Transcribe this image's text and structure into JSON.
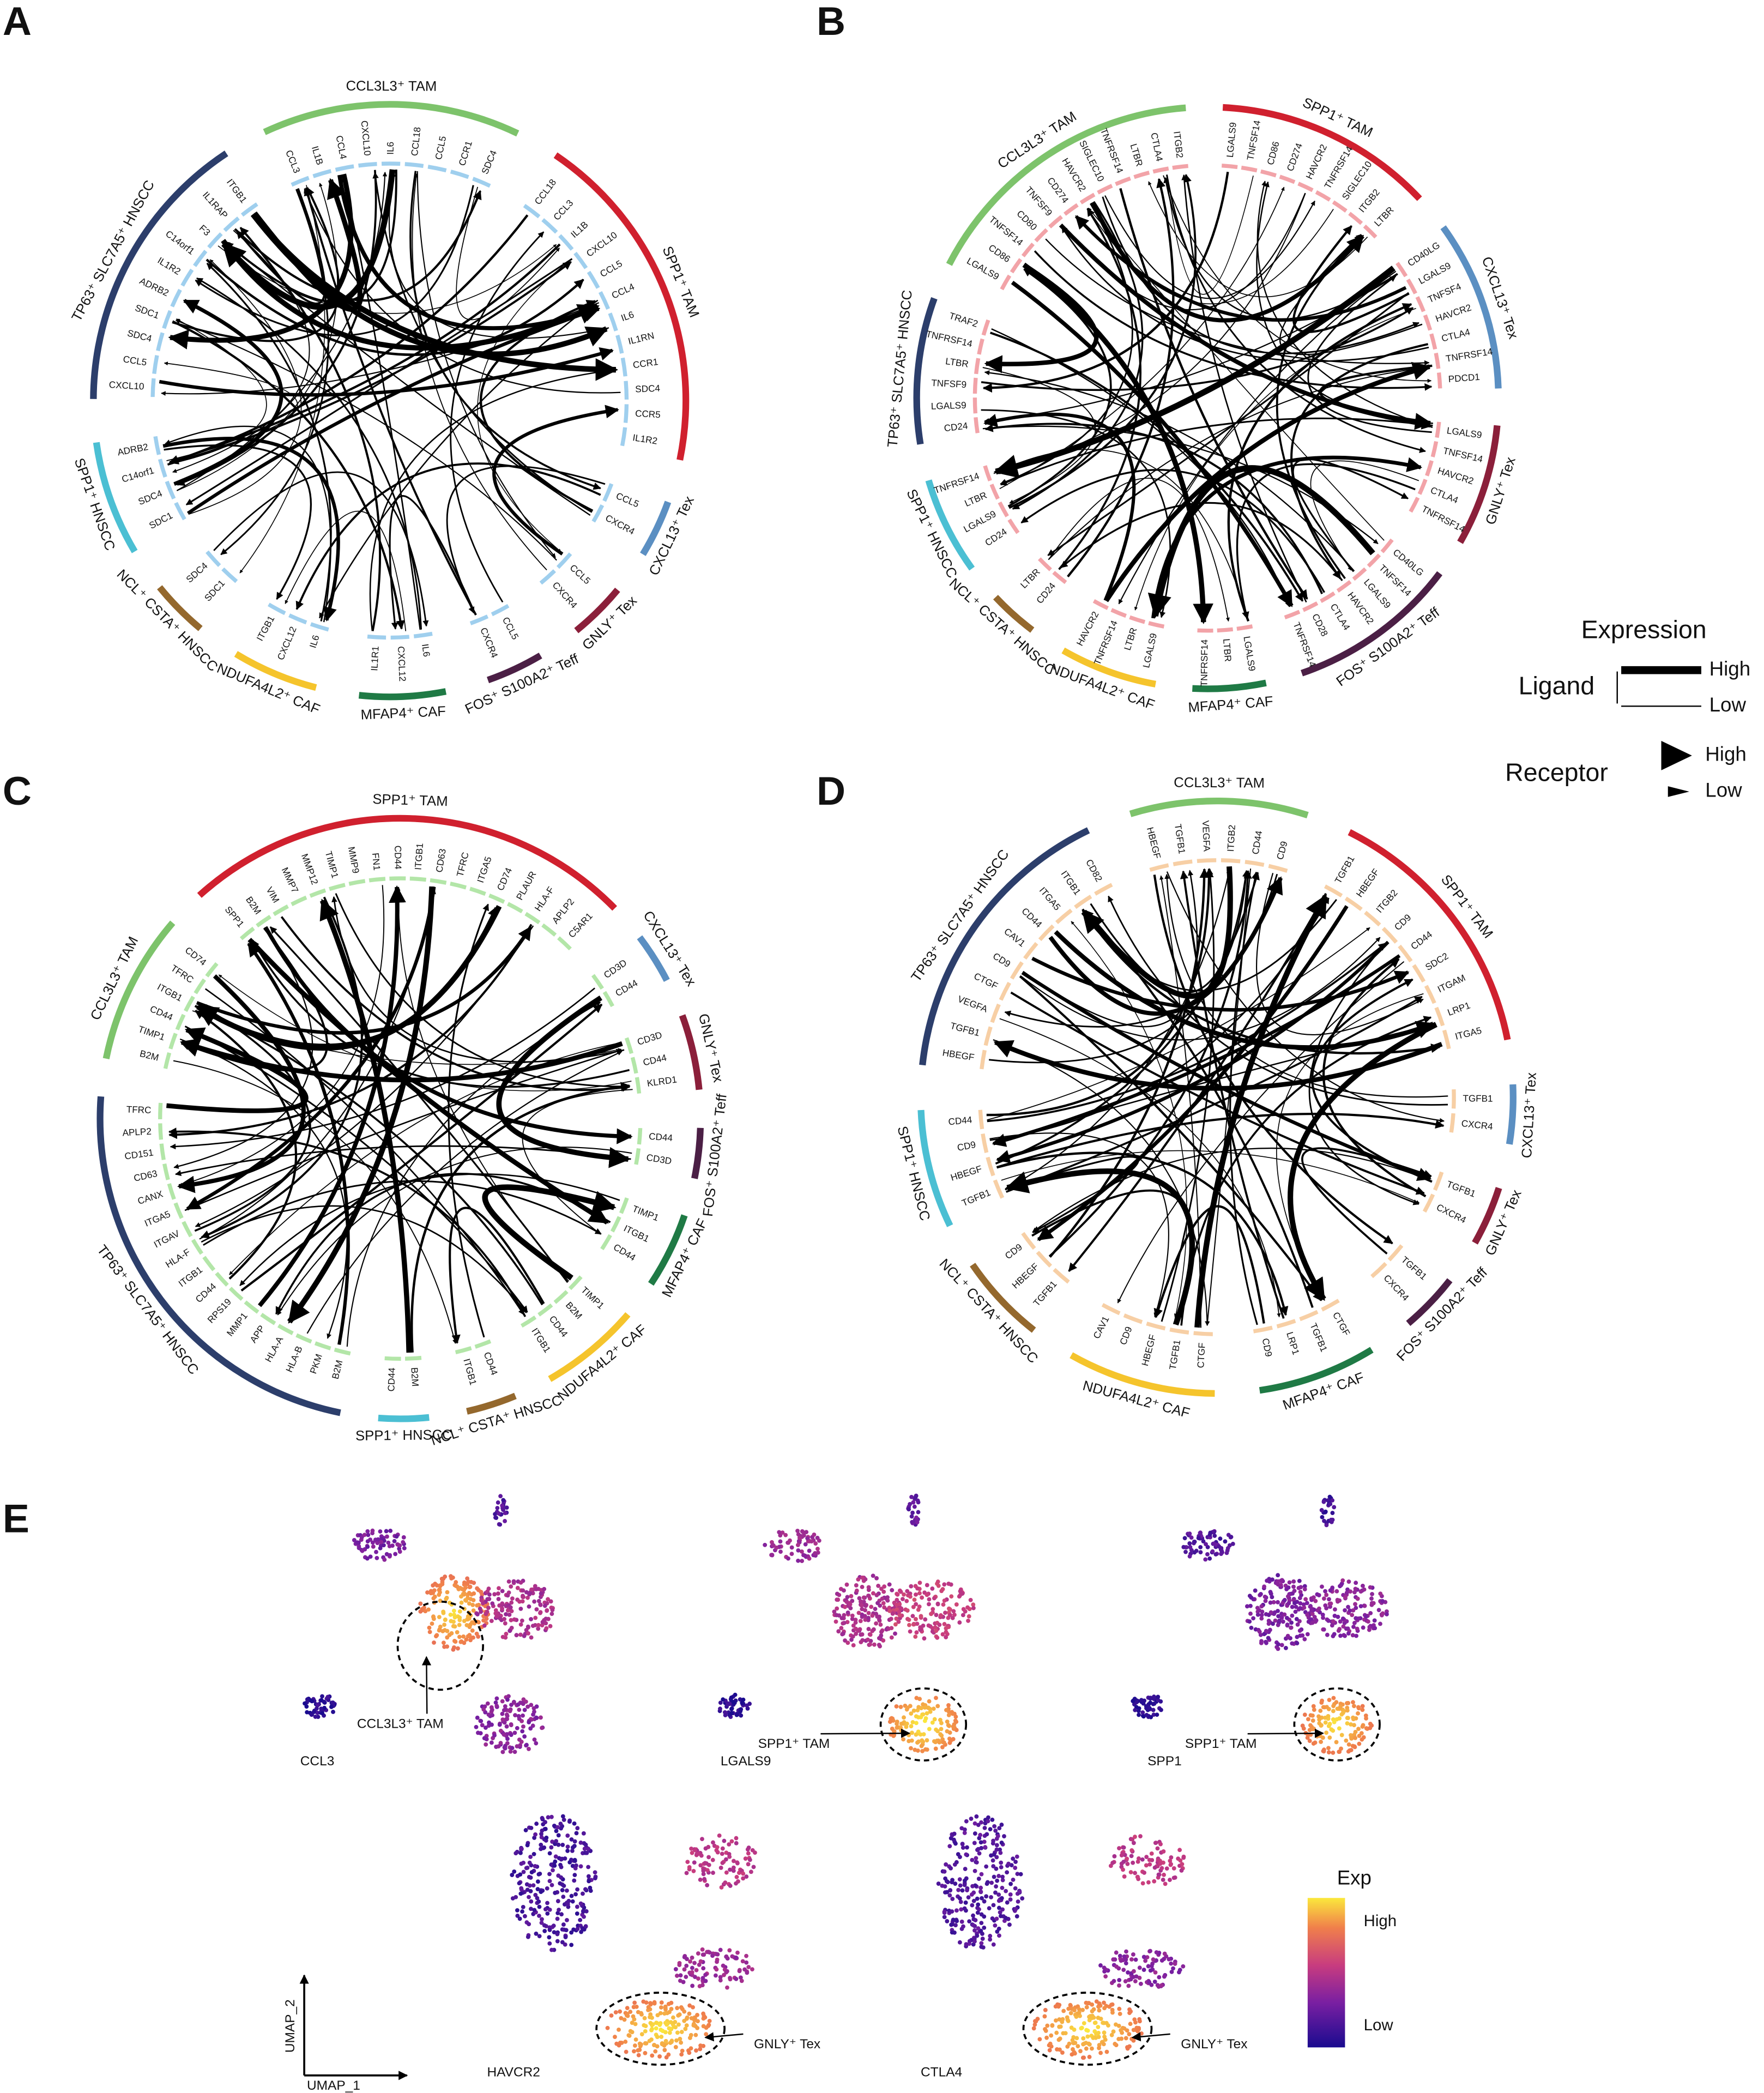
{
  "panels": [
    {
      "letter": "A",
      "ligand_color": "#9fcfee",
      "sectors": [
        {
          "label": "CCL3L3⁺ TAM",
          "color": "#7dc36b",
          "genes": [
            "CCL3",
            "IL1B",
            "CCL4",
            "CXCL10",
            "IL6",
            "CCL18",
            "CCL5",
            "CCR1",
            "SDC4"
          ]
        },
        {
          "label": "SPP1⁺ TAM",
          "color": "#d0202e",
          "genes": [
            "CCL18",
            "CCL3",
            "IL1B",
            "CXCL10",
            "CCL5",
            "CCL4",
            "IL6",
            "IL1RN",
            "CCR1",
            "SDC4",
            "CCR5",
            "IL1R2"
          ]
        },
        {
          "label": "CXCL13⁺ Tex",
          "color": "#5b8fc2",
          "genes": [
            "CCL5",
            "CXCR4"
          ]
        },
        {
          "label": "GNLY⁺ Tex",
          "color": "#8b1f3a",
          "genes": [
            "CCL5",
            "CXCR4"
          ]
        },
        {
          "label": "FOS⁺ S100A2⁺ Teff",
          "color": "#4b1f45",
          "genes": [
            "CCL5",
            "CXCR4"
          ]
        },
        {
          "label": "MFAP4⁺ CAF",
          "color": "#1f7a45",
          "genes": [
            "IL6",
            "CXCL12",
            "IL1R1"
          ]
        },
        {
          "label": "NDUFA4L2⁺ CAF",
          "color": "#f5c42c",
          "genes": [
            "IL6",
            "CXCL12",
            "ITGB1"
          ]
        },
        {
          "label": "NCL⁺ CSTA⁺ HNSCC",
          "color": "#94682d",
          "genes": [
            "SDC1",
            "SDC4"
          ]
        },
        {
          "label": "SPP1⁺ HNSCC",
          "color": "#4bbfd3",
          "genes": [
            "SDC1",
            "SDC4",
            "C14orf1",
            "ADRB2"
          ]
        },
        {
          "label": "TP63⁺ SLC7A5⁺ HNSCC",
          "color": "#2c3e6b",
          "genes": [
            "CXCL10",
            "CCL5",
            "SDC4",
            "SDC1",
            "ADRB2",
            "IL1R2",
            "C14orf1",
            "F3",
            "IL1RAP",
            "ITGB1"
          ]
        }
      ]
    },
    {
      "letter": "B",
      "ligand_color": "#f2a3a8",
      "sectors": [
        {
          "label": "SPP1⁺ TAM",
          "color": "#d0202e",
          "genes": [
            "LGALS9",
            "TNFSF14",
            "CD86",
            "CD274",
            "HAVCR2",
            "TNFRSF14",
            "SIGLEC10",
            "ITGB2",
            "LTBR"
          ]
        },
        {
          "label": "CXCL13⁺ Tex",
          "color": "#5b8fc2",
          "genes": [
            "CD40LG",
            "LGALS9",
            "TNFSF4",
            "HAVCR2",
            "CTLA4",
            "TNFRSF14",
            "PDCD1"
          ]
        },
        {
          "label": "GNLY⁺ Tex",
          "color": "#8b1f3a",
          "genes": [
            "LGALS9",
            "TNFSF14",
            "HAVCR2",
            "CTLA4",
            "TNFRSF14"
          ]
        },
        {
          "label": "FOS⁺ S100A2⁺ Teff",
          "color": "#4b1f45",
          "genes": [
            "CD40LG",
            "TNFSF14",
            "LGALS9",
            "HAVCR2",
            "CTLA4",
            "CD28",
            "TNFRSF14"
          ]
        },
        {
          "label": "MFAP4⁺ CAF",
          "color": "#1f7a45",
          "genes": [
            "LGALS9",
            "LTBR",
            "TNFRSF14"
          ]
        },
        {
          "label": "NDUFA4L2⁺ CAF",
          "color": "#f5c42c",
          "genes": [
            "LGALS9",
            "LTBR",
            "TNFRSF14",
            "HAVCR2"
          ]
        },
        {
          "label": "NCL⁺ CSTA⁺ HNSCC",
          "color": "#94682d",
          "genes": [
            "CD24",
            "LTBR"
          ]
        },
        {
          "label": "SPP1⁺ HNSCC",
          "color": "#4bbfd3",
          "genes": [
            "CD24",
            "LGALS9",
            "LTBR",
            "TNFRSF14"
          ]
        },
        {
          "label": "TP63⁺ SLC7A5⁺ HNSCC",
          "color": "#2c3e6b",
          "genes": [
            "CD24",
            "LGALS9",
            "TNFSF9",
            "LTBR",
            "TNFRSF14",
            "TRAF2"
          ]
        },
        {
          "label": "CCL3L3⁺ TAM",
          "color": "#7dc36b",
          "genes": [
            "LGALS9",
            "CD86",
            "TNFSF14",
            "CD80",
            "TNFSF9",
            "CD274",
            "HAVCR2",
            "SIGLEC10",
            "TNFRSF14",
            "LTBR",
            "CTLA4",
            "ITGB2"
          ]
        }
      ]
    },
    {
      "letter": "C",
      "ligand_color": "#b3e6a8",
      "sectors": [
        {
          "label": "SPP1⁺ TAM",
          "color": "#d0202e",
          "genes": [
            "SPP1",
            "B2M",
            "VIM",
            "MMP7",
            "MMP12",
            "TIMP1",
            "MMP9",
            "FN1",
            "CD44",
            "ITGB1",
            "CD63",
            "TFRC",
            "ITGA5",
            "CD74",
            "PLAUR",
            "HLA-F",
            "APLP2",
            "C5AR1"
          ]
        },
        {
          "label": "CXCL13⁺ Tex",
          "color": "#5b8fc2",
          "genes": [
            "CD3D",
            "CD44"
          ]
        },
        {
          "label": "GNLY⁺ Tex",
          "color": "#8b1f3a",
          "genes": [
            "CD3D",
            "CD44",
            "KLRD1"
          ]
        },
        {
          "label": "FOS⁺ S100A2⁺ Teff",
          "color": "#4b1f45",
          "genes": [
            "CD44",
            "CD3D"
          ]
        },
        {
          "label": "MFAP4⁺ CAF",
          "color": "#1f7a45",
          "genes": [
            "TIMP1",
            "ITGB1",
            "CD44"
          ]
        },
        {
          "label": "NDUFA4L2⁺ CAF",
          "color": "#f5c42c",
          "genes": [
            "TIMP1",
            "B2M",
            "CD44",
            "ITGB1"
          ]
        },
        {
          "label": "NCL⁺ CSTA⁺ HNSCC",
          "color": "#94682d",
          "genes": [
            "CD44",
            "ITGB1"
          ]
        },
        {
          "label": "SPP1⁺ HNSCC",
          "color": "#4bbfd3",
          "genes": [
            "B2M",
            "CD44"
          ]
        },
        {
          "label": "TP63⁺ SLC7A5⁺ HNSCC",
          "color": "#2c3e6b",
          "genes": [
            "B2M",
            "PKM",
            "HLA-B",
            "HLA-A",
            "APP",
            "MMP1",
            "RPS19",
            "CD44",
            "ITGB1",
            "HLA-F",
            "ITGAV",
            "ITGA5",
            "CANX",
            "CD63",
            "CD151",
            "APLP2",
            "TFRC"
          ]
        },
        {
          "label": "CCL3L3⁺ TAM",
          "color": "#7dc36b",
          "genes": [
            "B2M",
            "TIMP1",
            "CD44",
            "ITGB1",
            "TFRC",
            "CD74"
          ]
        }
      ]
    },
    {
      "letter": "D",
      "ligand_color": "#f7cfa5",
      "sectors": [
        {
          "label": "CCL3L3⁺ TAM",
          "color": "#7dc36b",
          "genes": [
            "HBEGF",
            "TGFB1",
            "VEGFA",
            "ITGB2",
            "CD44",
            "CD9"
          ]
        },
        {
          "label": "SPP1⁺ TAM",
          "color": "#d0202e",
          "genes": [
            "TGFB1",
            "HBEGF",
            "ITGB2",
            "CD9",
            "CD44",
            "SDC2",
            "ITGAM",
            "LRP1",
            "ITGA5"
          ]
        },
        {
          "label": "CXCL13⁺ Tex",
          "color": "#5b8fc2",
          "genes": [
            "TGFB1",
            "CXCR4"
          ]
        },
        {
          "label": "GNLY⁺ Tex",
          "color": "#8b1f3a",
          "genes": [
            "TGFB1",
            "CXCR4"
          ]
        },
        {
          "label": "FOS⁺ S100A2⁺ Teff",
          "color": "#4b1f45",
          "genes": [
            "TGFB1",
            "CXCR4"
          ]
        },
        {
          "label": "MFAP4⁺ CAF",
          "color": "#1f7a45",
          "genes": [
            "CTGF",
            "TGFB1",
            "LRP1",
            "CD9"
          ]
        },
        {
          "label": "NDUFA4L2⁺ CAF",
          "color": "#f5c42c",
          "genes": [
            "CTGF",
            "TGFB1",
            "HBEGF",
            "CD9",
            "CAV1"
          ]
        },
        {
          "label": "NCL⁺ CSTA⁺ HNSCC",
          "color": "#94682d",
          "genes": [
            "TGFB1",
            "HBEGF",
            "CD9"
          ]
        },
        {
          "label": "SPP1⁺ HNSCC",
          "color": "#4bbfd3",
          "genes": [
            "TGFB1",
            "HBEGF",
            "CD9",
            "CD44"
          ]
        },
        {
          "label": "TP63⁺ SLC7A5⁺ HNSCC",
          "color": "#2c3e6b",
          "genes": [
            "HBEGF",
            "TGFB1",
            "VEGFA",
            "CTGF",
            "CD9",
            "CAV1",
            "CD44",
            "ITGA5",
            "ITGB1",
            "CD82"
          ]
        }
      ]
    }
  ],
  "legend": {
    "title": "Expression",
    "ligand": "Ligand",
    "ligand_high": "High",
    "ligand_low": "Low",
    "receptor": "Receptor",
    "receptor_high": "High",
    "receptor_low": "Low"
  },
  "umap": {
    "letter": "E",
    "x_label": "UMAP_1",
    "y_label": "UMAP_2",
    "colorbar": {
      "title": "Exp",
      "high": "High",
      "low": "Low"
    },
    "plots": [
      {
        "gene": "CCL3",
        "annotation": "CCL3L3⁺ TAM"
      },
      {
        "gene": "LGALS9",
        "annotation": "SPP1⁺ TAM"
      },
      {
        "gene": "SPP1",
        "annotation": "SPP1⁺ TAM"
      },
      {
        "gene": "HAVCR2",
        "annotation": "GNLY⁺ Tex"
      },
      {
        "gene": "CTLA4",
        "annotation": "GNLY⁺ Tex"
      }
    ]
  }
}
